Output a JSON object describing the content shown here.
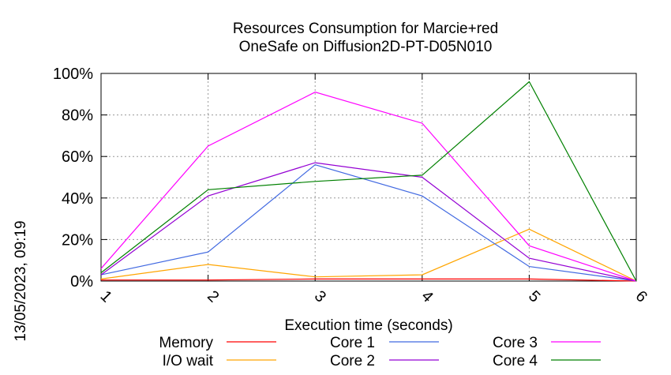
{
  "chart_data": {
    "type": "line",
    "title": "Resources Consumption for Marcie+red",
    "subtitle": "OneSafe on Diffusion2D-PT-D05N010",
    "xlabel": "Execution time (seconds)",
    "timestamp": "13/05/2023, 09:19",
    "x": [
      1,
      2,
      3,
      4,
      5,
      6
    ],
    "xlim": [
      1,
      6
    ],
    "ylim": [
      0,
      100
    ],
    "yticks": [
      "0%",
      "20%",
      "40%",
      "60%",
      "80%",
      "100%"
    ],
    "ytick_values": [
      0,
      20,
      40,
      60,
      80,
      100
    ],
    "xticks": [
      "1",
      "2",
      "3",
      "4",
      "5",
      "6"
    ],
    "grid": true,
    "legend_position": "bottom",
    "series": [
      {
        "name": "Memory",
        "color": "#ff0000",
        "values": [
          0.5,
          0.5,
          1,
          1,
          1,
          0
        ]
      },
      {
        "name": "I/O wait",
        "color": "#ffa500",
        "values": [
          1,
          8,
          2,
          3,
          25,
          0
        ]
      },
      {
        "name": "Core 1",
        "color": "#4169e1",
        "values": [
          3,
          14,
          56,
          41,
          7,
          0
        ]
      },
      {
        "name": "Core 2",
        "color": "#9400d3",
        "values": [
          3,
          41,
          57,
          50,
          11,
          0
        ]
      },
      {
        "name": "Core 3",
        "color": "#ff00ff",
        "values": [
          6,
          65,
          91,
          76,
          17,
          0
        ]
      },
      {
        "name": "Core 4",
        "color": "#008000",
        "values": [
          4,
          44,
          48,
          51,
          96,
          0
        ]
      }
    ]
  }
}
